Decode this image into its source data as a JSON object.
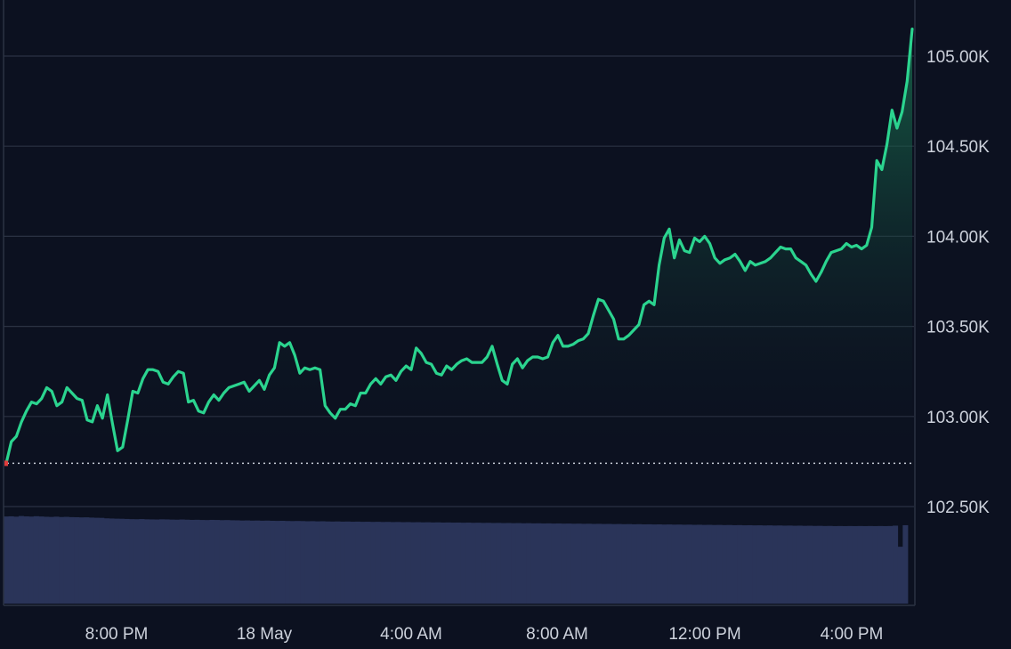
{
  "chart_data": {
    "type": "area",
    "title": "",
    "xlabel": "",
    "ylabel": "",
    "x_tick_labels": [
      "8:00 PM",
      "18 May",
      "4:00 AM",
      "8:00 AM",
      "12:00 PM",
      "4:00 PM"
    ],
    "y_tick_labels": [
      "105.00K",
      "104.50K",
      "104.00K",
      "103.50K",
      "103.00K",
      "102.50K"
    ],
    "y_ticks": [
      105000,
      104500,
      104000,
      103500,
      103000,
      102500
    ],
    "ylim": [
      102300,
      105300
    ],
    "grid": true,
    "reference_line": 102740,
    "series": [
      {
        "values": [
          102740,
          102860,
          102890,
          102970,
          103030,
          103080,
          103070,
          103100,
          103160,
          103140,
          103060,
          103080,
          103160,
          103130,
          103100,
          103090,
          102980,
          102970,
          103060,
          102990,
          103120,
          102960,
          102810,
          102830,
          102980,
          103140,
          103130,
          103210,
          103260,
          103260,
          103250,
          103190,
          103180,
          103220,
          103250,
          103240,
          103080,
          103090,
          103030,
          103020,
          103080,
          103120,
          103090,
          103130,
          103160,
          103170,
          103180,
          103190,
          103140,
          103170,
          103200,
          103150,
          103230,
          103270,
          103410,
          103390,
          103410,
          103340,
          103240,
          103270,
          103260,
          103270,
          103260,
          103060,
          103020,
          102990,
          103040,
          103040,
          103070,
          103060,
          103130,
          103130,
          103180,
          103210,
          103180,
          103220,
          103230,
          103200,
          103250,
          103280,
          103260,
          103380,
          103350,
          103300,
          103290,
          103240,
          103230,
          103280,
          103260,
          103290,
          103310,
          103320,
          103300,
          103300,
          103300,
          103330,
          103390,
          103290,
          103200,
          103180,
          103290,
          103320,
          103270,
          103310,
          103330,
          103330,
          103320,
          103330,
          103410,
          103450,
          103390,
          103390,
          103400,
          103420,
          103430,
          103460,
          103560,
          103650,
          103640,
          103590,
          103540,
          103430,
          103430,
          103450,
          103480,
          103510,
          103620,
          103640,
          103620,
          103840,
          103990,
          104040,
          103880,
          103980,
          103920,
          103910,
          103990,
          103970,
          104000,
          103960,
          103880,
          103850,
          103870,
          103880,
          103900,
          103860,
          103810,
          103860,
          103840,
          103850,
          103860,
          103880,
          103910,
          103940,
          103930,
          103930,
          103880,
          103860,
          103840,
          103790,
          103750,
          103800,
          103860,
          103910,
          103920,
          103930,
          103960,
          103940,
          103950,
          103930,
          103950,
          104050,
          104420,
          104370,
          104510,
          104700,
          104600,
          104690,
          104860,
          105150
        ]
      }
    ],
    "volume": [
      0.95,
      0.952,
      0.948,
      0.955,
      0.951,
      0.949,
      0.953,
      0.95,
      0.947,
      0.945,
      0.948,
      0.944,
      0.946,
      0.943,
      0.942,
      0.94,
      0.941,
      0.938,
      0.936,
      0.935,
      0.93,
      0.928,
      0.926,
      0.925,
      0.923,
      0.921,
      0.92,
      0.922,
      0.919,
      0.918,
      0.917,
      0.919,
      0.918,
      0.916,
      0.915,
      0.917,
      0.915,
      0.913,
      0.914,
      0.912,
      0.911,
      0.913,
      0.912,
      0.91,
      0.911,
      0.909,
      0.908,
      0.906,
      0.907,
      0.905,
      0.906,
      0.904,
      0.905,
      0.903,
      0.902,
      0.903,
      0.901,
      0.9,
      0.901,
      0.9,
      0.898,
      0.899,
      0.897,
      0.898,
      0.896,
      0.895,
      0.896,
      0.894,
      0.895,
      0.893,
      0.894,
      0.892,
      0.893,
      0.891,
      0.892,
      0.89,
      0.891,
      0.889,
      0.89,
      0.888,
      0.889,
      0.887,
      0.888,
      0.886,
      0.887,
      0.885,
      0.886,
      0.884,
      0.885,
      0.883,
      0.884,
      0.882,
      0.883,
      0.881,
      0.882,
      0.88,
      0.881,
      0.879,
      0.88,
      0.878,
      0.879,
      0.877,
      0.878,
      0.876,
      0.877,
      0.875,
      0.876,
      0.874,
      0.875,
      0.873,
      0.874,
      0.872,
      0.873,
      0.871,
      0.872,
      0.87,
      0.871,
      0.869,
      0.87,
      0.868,
      0.869,
      0.867,
      0.868,
      0.866,
      0.867,
      0.865,
      0.866,
      0.864,
      0.865,
      0.863,
      0.864,
      0.862,
      0.863,
      0.861,
      0.862,
      0.86,
      0.861,
      0.859,
      0.86,
      0.858,
      0.859,
      0.857,
      0.858,
      0.856,
      0.857,
      0.855,
      0.856,
      0.854,
      0.855,
      0.853,
      0.854,
      0.852,
      0.853,
      0.851,
      0.852,
      0.85,
      0.851,
      0.849,
      0.85,
      0.848,
      0.849,
      0.847,
      0.848,
      0.846,
      0.847,
      0.845,
      0.846,
      0.845,
      0.846,
      0.845,
      0.846,
      0.845,
      0.846,
      0.845,
      0.846,
      0.845,
      0.846,
      0.85,
      0.62,
      0.855
    ],
    "colors": {
      "background": "#0c1120",
      "line": "#2bd48f",
      "area_top": "#1a7a55",
      "grid": "#2b3243",
      "volume": "#2a3459",
      "axis_text": "#cdd2dc",
      "reference_line": "#c9ced8",
      "start_marker": "#e03c3c"
    }
  }
}
